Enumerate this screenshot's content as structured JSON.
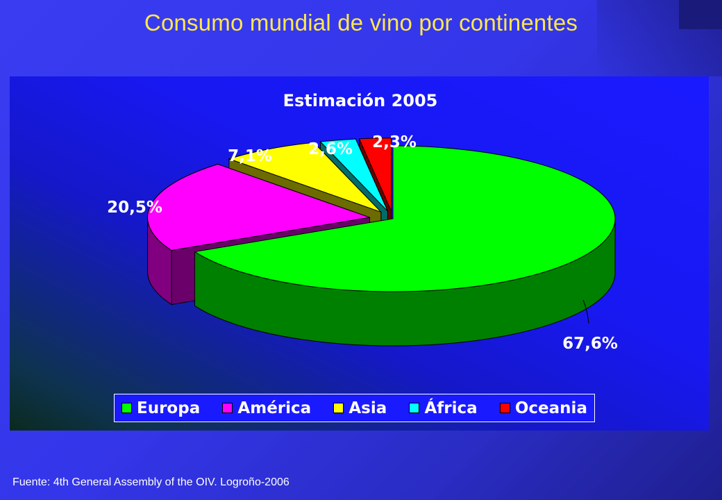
{
  "slide": {
    "title": "Consumo mundial de vino por continentes",
    "source": "Fuente: 4th General Assembly of the OIV. Logroño-2006"
  },
  "chart_data": {
    "type": "pie",
    "title": "Estimación 2005",
    "three_d": true,
    "legend_position": "bottom",
    "slices": [
      {
        "label": "Europa",
        "value": 67.6,
        "value_label": "67,6%",
        "color": "#00ff00",
        "exploded": false
      },
      {
        "label": "América",
        "value": 20.5,
        "value_label": "20,5%",
        "color": "#ff00ff",
        "exploded": true
      },
      {
        "label": "Asia",
        "value": 7.1,
        "value_label": "7,1%",
        "color": "#ffff00",
        "exploded": true
      },
      {
        "label": "África",
        "value": 2.6,
        "value_label": "2,6%",
        "color": "#00ffff",
        "exploded": true
      },
      {
        "label": "Oceania",
        "value": 2.3,
        "value_label": "2,3%",
        "color": "#ff0000",
        "exploded": true
      }
    ]
  }
}
